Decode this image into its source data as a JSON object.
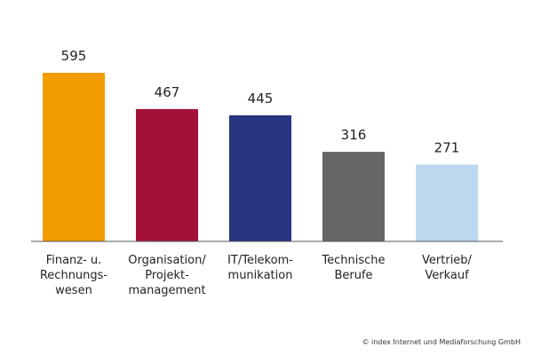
{
  "chart_data": {
    "type": "bar",
    "categories": [
      "Finanz- u. Rechnungs- wesen",
      "Organisation/ Projekt- management",
      "IT/Telekom- munikation",
      "Technische Berufe",
      "Vertrieb/ Verkauf"
    ],
    "category_lines": [
      [
        "Finanz- u.",
        "Rechnungs-",
        "wesen"
      ],
      [
        "Organisation/",
        "Projekt-",
        "management"
      ],
      [
        "IT/Telekom-",
        "munikation"
      ],
      [
        "Technische",
        "Berufe"
      ],
      [
        "Vertrieb/",
        "Verkauf"
      ]
    ],
    "values": [
      595,
      467,
      445,
      316,
      271
    ],
    "value_labels": [
      "595",
      "467",
      "445",
      "316",
      "271"
    ],
    "colors": [
      "#f39c00",
      "#a3113a",
      "#293581",
      "#666666",
      "#bdd7ee"
    ],
    "ylim": [
      0,
      595
    ],
    "grid": false,
    "legend": "none"
  },
  "footer": {
    "credit": "© index Internet und Mediaforschung GmbH"
  }
}
